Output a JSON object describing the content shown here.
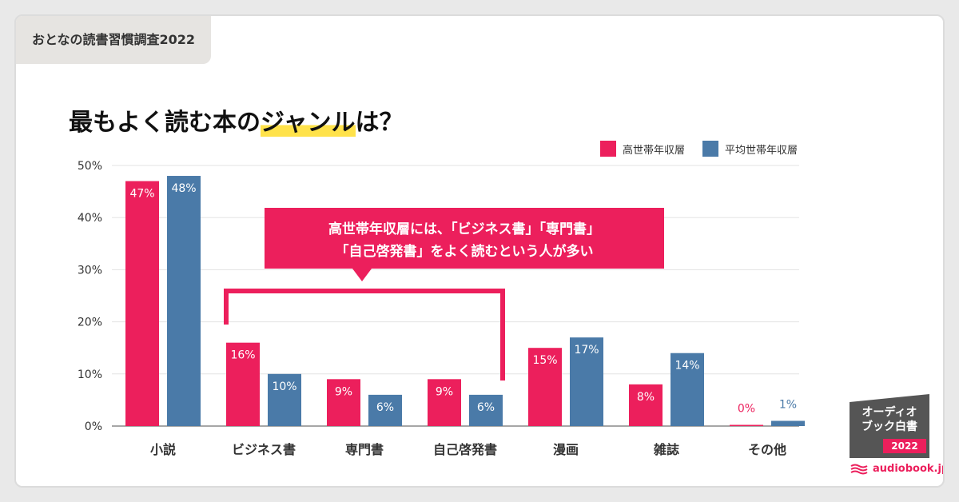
{
  "survey_tag": "おとなの読書習慣調査2022",
  "headline": {
    "before": "最もよく読む本の",
    "highlight": "ジャンル",
    "after": "は？"
  },
  "callout": {
    "line1": "高世帯年収層には、「ビジネス書」「専門書」",
    "line2": "「自己啓発書」をよく読むという人が多い"
  },
  "logo": {
    "line1": "オーディオ",
    "line2": "ブック白書",
    "year": "2022",
    "site": "audiobook.jp"
  },
  "colors": {
    "high_income": "#ec1f5c",
    "average": "#4a7aa8"
  },
  "chart_data": {
    "type": "bar",
    "categories": [
      "小説",
      "ビジネス書",
      "専門書",
      "自己啓発書",
      "漫画",
      "雑誌",
      "その他"
    ],
    "series": [
      {
        "name": "高世帯年収層",
        "values": [
          47,
          16,
          9,
          9,
          15,
          8,
          0
        ]
      },
      {
        "name": "平均世帯年収層",
        "values": [
          48,
          10,
          6,
          6,
          17,
          14,
          1
        ]
      }
    ],
    "y_ticks": [
      "0%",
      "10%",
      "20%",
      "30%",
      "40%",
      "50%"
    ],
    "ylim": [
      0,
      50
    ],
    "unit": "%",
    "grid": true,
    "legend_position": "top-right"
  }
}
